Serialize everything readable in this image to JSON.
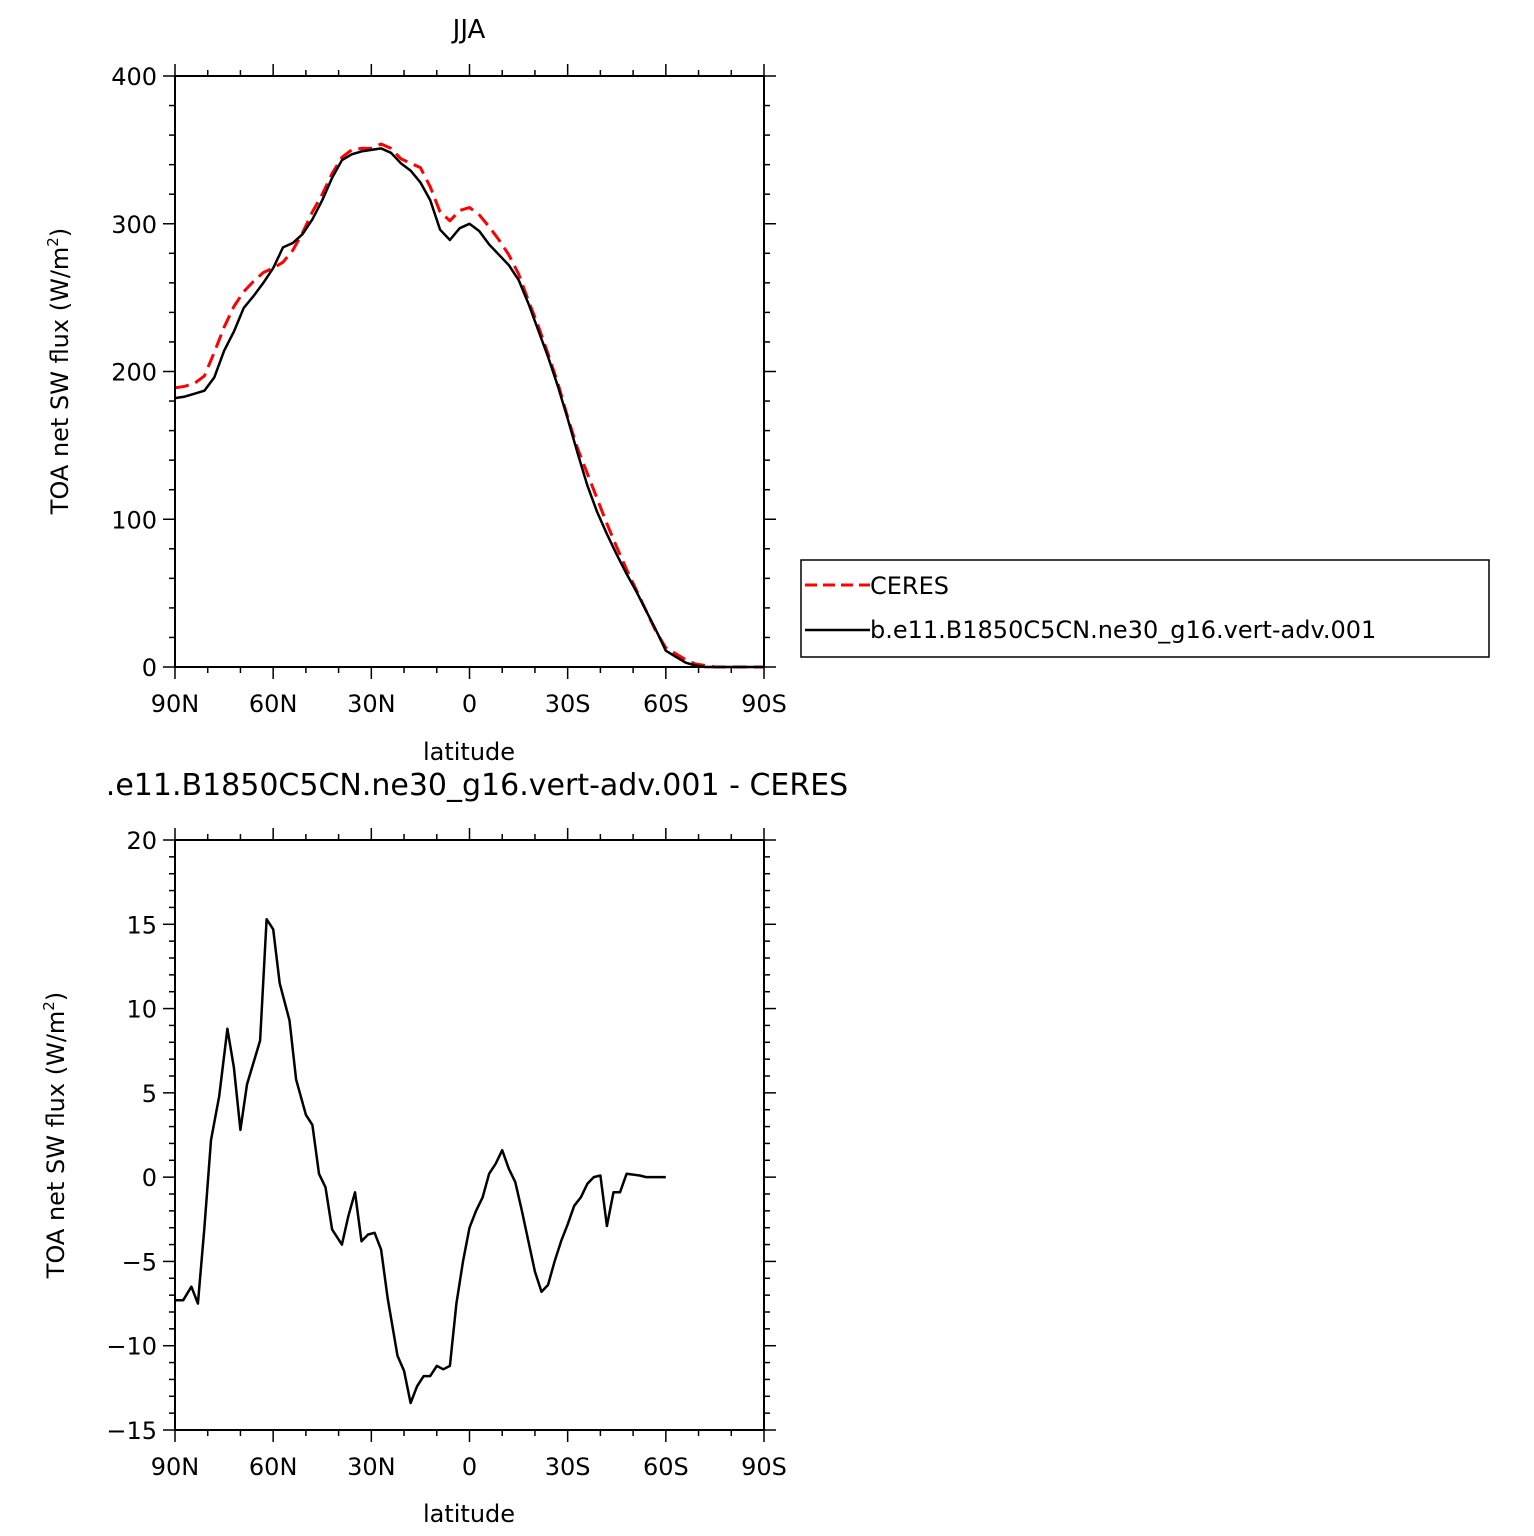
{
  "chart_data": [
    {
      "type": "line",
      "title": "JJA",
      "xlabel": "latitude",
      "ylabel": "TOA net SW flux (W/m",
      "ylabel_sup": "2",
      "ylabel_close": ")",
      "xlim": [
        90,
        -90
      ],
      "ylim": [
        0,
        400
      ],
      "xticks": [
        {
          "value": 90,
          "label": "90N"
        },
        {
          "value": 60,
          "label": "60N"
        },
        {
          "value": 30,
          "label": "30N"
        },
        {
          "value": 0,
          "label": "0"
        },
        {
          "value": -30,
          "label": "30S"
        },
        {
          "value": -60,
          "label": "60S"
        },
        {
          "value": -90,
          "label": "90S"
        }
      ],
      "yticks": [
        {
          "value": 0,
          "label": "0"
        },
        {
          "value": 100,
          "label": "100"
        },
        {
          "value": 200,
          "label": "200"
        },
        {
          "value": 300,
          "label": "300"
        },
        {
          "value": 400,
          "label": "400"
        }
      ],
      "legend": {
        "position": "right",
        "entries": [
          {
            "name": "CERES",
            "color": "#ff0000",
            "dash": "dashed"
          },
          {
            "name": "b.e11.B1850C5CN.ne30_g16.vert-adv.001",
            "color": "#000000",
            "dash": "solid"
          }
        ]
      },
      "series": [
        {
          "name": "CERES",
          "color": "#ff0000",
          "dash": "dashed",
          "points": [
            [
              90,
              189
            ],
            [
              87,
              190
            ],
            [
              84,
              192
            ],
            [
              81,
              197
            ],
            [
              78,
              213
            ],
            [
              75,
              230
            ],
            [
              72,
              244
            ],
            [
              69,
              254
            ],
            [
              66,
              261
            ],
            [
              63,
              267
            ],
            [
              60,
              270
            ],
            [
              57,
              274
            ],
            [
              54,
              282
            ],
            [
              51,
              294
            ],
            [
              48,
              308
            ],
            [
              45,
              320
            ],
            [
              42,
              334
            ],
            [
              39,
              345
            ],
            [
              36,
              350
            ],
            [
              33,
              351
            ],
            [
              30,
              351
            ],
            [
              27,
              354
            ],
            [
              24,
              351
            ],
            [
              21,
              344
            ],
            [
              18,
              341
            ],
            [
              15,
              338
            ],
            [
              12,
              325
            ],
            [
              9,
              308
            ],
            [
              6,
              302
            ],
            [
              3,
              309
            ],
            [
              0,
              311
            ],
            [
              -3,
              306
            ],
            [
              -6,
              298
            ],
            [
              -9,
              289
            ],
            [
              -12,
              279
            ],
            [
              -15,
              266
            ],
            [
              -18,
              248
            ],
            [
              -21,
              231
            ],
            [
              -24,
              212
            ],
            [
              -27,
              192
            ],
            [
              -30,
              169
            ],
            [
              -33,
              148
            ],
            [
              -36,
              131
            ],
            [
              -39,
              114
            ],
            [
              -42,
              97
            ],
            [
              -45,
              81
            ],
            [
              -48,
              66
            ],
            [
              -51,
              52
            ],
            [
              -54,
              38
            ],
            [
              -57,
              24
            ],
            [
              -60,
              13
            ],
            [
              -63,
              9
            ],
            [
              -66,
              5
            ],
            [
              -69,
              2
            ],
            [
              -72,
              1
            ],
            [
              -75,
              0
            ],
            [
              -78,
              0
            ],
            [
              -81,
              0
            ],
            [
              -84,
              0
            ],
            [
              -87,
              0
            ],
            [
              -90,
              0
            ]
          ]
        },
        {
          "name": "b.e11.B1850C5CN.ne30_g16.vert-adv.001",
          "color": "#000000",
          "dash": "solid",
          "points": [
            [
              90,
              182
            ],
            [
              87,
              183
            ],
            [
              84,
              185
            ],
            [
              81,
              187
            ],
            [
              78,
              196
            ],
            [
              75,
              214
            ],
            [
              72,
              227
            ],
            [
              69,
              243
            ],
            [
              66,
              251
            ],
            [
              63,
              260
            ],
            [
              60,
              270
            ],
            [
              57,
              284
            ],
            [
              54,
              287
            ],
            [
              51,
              293
            ],
            [
              48,
              303
            ],
            [
              45,
              316
            ],
            [
              42,
              331
            ],
            [
              39,
              343
            ],
            [
              36,
              347
            ],
            [
              33,
              349
            ],
            [
              30,
              350
            ],
            [
              27,
              351
            ],
            [
              24,
              348
            ],
            [
              21,
              341
            ],
            [
              18,
              336
            ],
            [
              15,
              328
            ],
            [
              12,
              316
            ],
            [
              9,
              296
            ],
            [
              6,
              289
            ],
            [
              3,
              297
            ],
            [
              0,
              300
            ],
            [
              -3,
              295
            ],
            [
              -6,
              286
            ],
            [
              -9,
              279
            ],
            [
              -12,
              272
            ],
            [
              -15,
              262
            ],
            [
              -18,
              246
            ],
            [
              -21,
              228
            ],
            [
              -24,
              210
            ],
            [
              -27,
              190
            ],
            [
              -30,
              168
            ],
            [
              -33,
              145
            ],
            [
              -36,
              123
            ],
            [
              -39,
              105
            ],
            [
              -42,
              90
            ],
            [
              -45,
              76
            ],
            [
              -48,
              63
            ],
            [
              -51,
              51
            ],
            [
              -54,
              38
            ],
            [
              -57,
              25
            ],
            [
              -60,
              11
            ],
            [
              -63,
              7
            ],
            [
              -66,
              3
            ],
            [
              -69,
              1
            ],
            [
              -72,
              0
            ],
            [
              -75,
              0
            ],
            [
              -78,
              0
            ],
            [
              -81,
              0
            ],
            [
              -84,
              0
            ],
            [
              -87,
              0
            ],
            [
              -90,
              0
            ]
          ]
        }
      ]
    },
    {
      "type": "line",
      "title": ".e11.B1850C5CN.ne30_g16.vert-adv.001 - CERES",
      "xlabel": "latitude",
      "ylabel": "TOA net SW flux (W/m",
      "ylabel_sup": "2",
      "ylabel_close": ")",
      "xlim": [
        90,
        -90
      ],
      "ylim": [
        -15,
        20
      ],
      "xticks": [
        {
          "value": 90,
          "label": "90N"
        },
        {
          "value": 60,
          "label": "60N"
        },
        {
          "value": 30,
          "label": "30N"
        },
        {
          "value": 0,
          "label": "0"
        },
        {
          "value": -30,
          "label": "30S"
        },
        {
          "value": -60,
          "label": "60S"
        },
        {
          "value": -90,
          "label": "90S"
        }
      ],
      "yticks": [
        {
          "value": -15,
          "label": "−15"
        },
        {
          "value": -10,
          "label": "−10"
        },
        {
          "value": -5,
          "label": "−5"
        },
        {
          "value": 0,
          "label": "0"
        },
        {
          "value": 5,
          "label": "5"
        },
        {
          "value": 10,
          "label": "10"
        },
        {
          "value": 15,
          "label": "15"
        },
        {
          "value": 20,
          "label": "20"
        }
      ],
      "series": [
        {
          "color": "#000000",
          "dash": "solid",
          "points": [
            [
              90,
              -7.3
            ],
            [
              87.5,
              -7.3
            ],
            [
              85,
              -6.5
            ],
            [
              83,
              -7.5
            ],
            [
              81,
              -3
            ],
            [
              79,
              2.2
            ],
            [
              76.5,
              4.8
            ],
            [
              74,
              8.8
            ],
            [
              72,
              6.5
            ],
            [
              70,
              2.8
            ],
            [
              68,
              5.5
            ],
            [
              64,
              8.1
            ],
            [
              62,
              15.3
            ],
            [
              60,
              14.7
            ],
            [
              58,
              11.5
            ],
            [
              55,
              9.3
            ],
            [
              53,
              5.8
            ],
            [
              50,
              3.7
            ],
            [
              48,
              3.1
            ],
            [
              46,
              0.2
            ],
            [
              44,
              -0.6
            ],
            [
              42,
              -3.1
            ],
            [
              39,
              -4
            ],
            [
              37,
              -2.3
            ],
            [
              35,
              -0.9
            ],
            [
              33,
              -3.8
            ],
            [
              31,
              -3.4
            ],
            [
              29,
              -3.3
            ],
            [
              27,
              -4.3
            ],
            [
              25,
              -7.2
            ],
            [
              22,
              -10.6
            ],
            [
              20,
              -11.5
            ],
            [
              18,
              -13.4
            ],
            [
              16,
              -12.4
            ],
            [
              14,
              -11.8
            ],
            [
              12,
              -11.8
            ],
            [
              10,
              -11.2
            ],
            [
              8,
              -11.4
            ],
            [
              6,
              -11.2
            ],
            [
              4,
              -7.5
            ],
            [
              2,
              -5
            ],
            [
              0,
              -3
            ],
            [
              -2,
              -2
            ],
            [
              -4,
              -1.2
            ],
            [
              -6,
              0.2
            ],
            [
              -8,
              0.8
            ],
            [
              -10,
              1.6
            ],
            [
              -12,
              0.5
            ],
            [
              -14,
              -0.3
            ],
            [
              -16,
              -2
            ],
            [
              -18,
              -3.8
            ],
            [
              -20,
              -5.6
            ],
            [
              -22,
              -6.8
            ],
            [
              -24,
              -6.4
            ],
            [
              -26,
              -5
            ],
            [
              -28,
              -3.8
            ],
            [
              -30,
              -2.8
            ],
            [
              -32,
              -1.7
            ],
            [
              -34,
              -1.2
            ],
            [
              -36,
              -0.4
            ],
            [
              -38,
              0
            ],
            [
              -40,
              0.1
            ],
            [
              -42,
              -2.9
            ],
            [
              -44,
              -0.9
            ],
            [
              -46,
              -0.9
            ],
            [
              -48,
              0.2
            ],
            [
              -50,
              0.15
            ],
            [
              -52,
              0.1
            ],
            [
              -54,
              0
            ],
            [
              -56,
              0
            ],
            [
              -58,
              0
            ],
            [
              -60,
              0
            ]
          ]
        }
      ]
    }
  ]
}
